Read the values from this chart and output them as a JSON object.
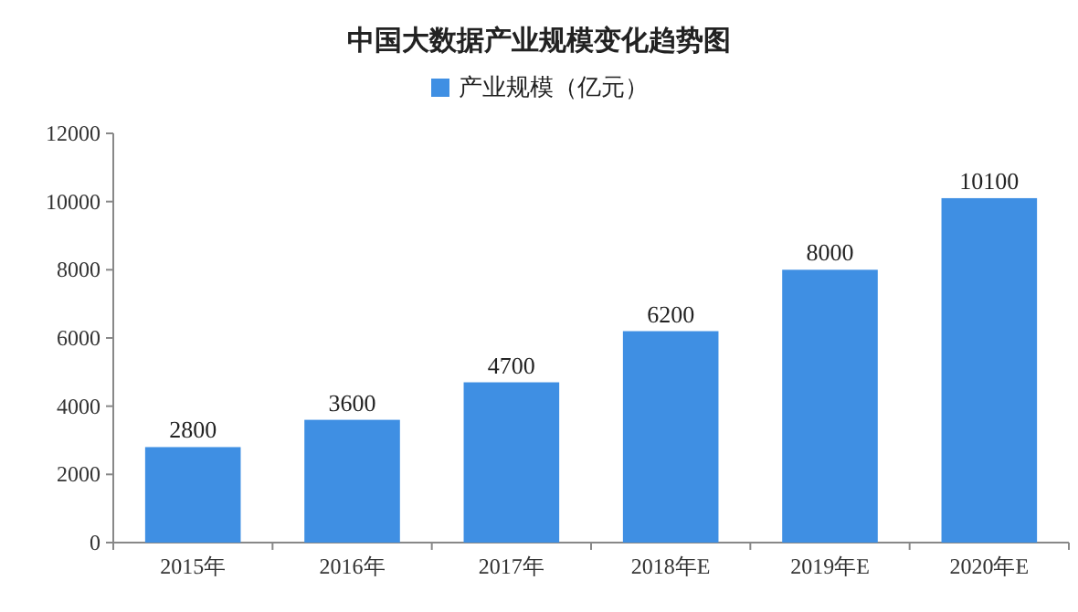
{
  "chart_data": {
    "type": "bar",
    "title": "中国大数据产业规模变化趋势图",
    "categories": [
      "2015年",
      "2016年",
      "2017年",
      "2018年E",
      "2019年E",
      "2020年E"
    ],
    "series": [
      {
        "name": "产业规模（亿元）",
        "color": "#3f8fe3",
        "values": [
          2800,
          3600,
          4700,
          6200,
          8000,
          10100
        ]
      }
    ],
    "ylim": [
      0,
      12000
    ],
    "yticks": [
      0,
      2000,
      4000,
      6000,
      8000,
      10000,
      12000
    ],
    "data_labels": true,
    "legend": "top",
    "grid": false
  }
}
